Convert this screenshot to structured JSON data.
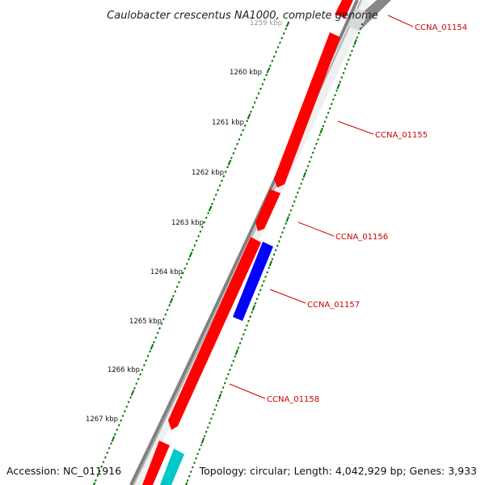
{
  "title": "Caulobacter crescentus NA1000, complete genome",
  "footer": {
    "accession": "Accession: NC_011916",
    "summary": "Topology: circular; Length: 4,042,929 bp; Genes: 3,933"
  },
  "colors": {
    "backbone": "#808080",
    "forward_gene": "#ff0000",
    "reverse_gene": "#0000ff",
    "rna_gene": "#00c8c8",
    "tick": "#007700",
    "label": "#cc0000"
  },
  "scale": {
    "unit": "kbp",
    "ticks": [
      {
        "kbp": 1259,
        "label": "1259 kbp"
      },
      {
        "kbp": 1260,
        "label": "1260 kbp"
      },
      {
        "kbp": 1261,
        "label": "1261 kbp"
      },
      {
        "kbp": 1262,
        "label": "1262 kbp"
      },
      {
        "kbp": 1263,
        "label": "1263 kbp"
      },
      {
        "kbp": 1264,
        "label": "1264 kbp"
      },
      {
        "kbp": 1265,
        "label": "1265 kbp"
      },
      {
        "kbp": 1266,
        "label": "1266 kbp"
      },
      {
        "kbp": 1267,
        "label": "1267 kbp"
      }
    ]
  },
  "genes": [
    {
      "id": "gene-ccna-01154",
      "label": "CCNA_01154",
      "strand": "forward",
      "type": "CDS"
    },
    {
      "id": "gene-ccna-01155",
      "label": "CCNA_01155",
      "strand": "forward",
      "type": "CDS"
    },
    {
      "id": "gene-ccna-01156",
      "label": "CCNA_01156",
      "strand": "forward",
      "type": "CDS"
    },
    {
      "id": "gene-ccna-01157",
      "label": "CCNA_01157",
      "strand": "reverse",
      "type": "CDS"
    },
    {
      "id": "gene-ccna-01158",
      "label": "CCNA_01158",
      "strand": "forward",
      "type": "CDS"
    }
  ]
}
